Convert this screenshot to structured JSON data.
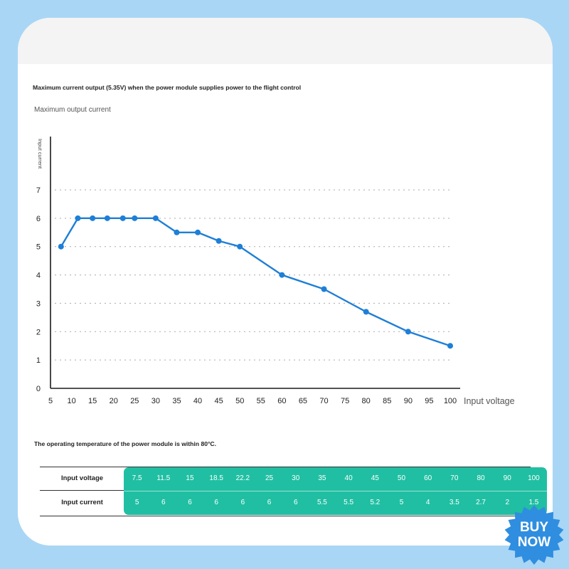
{
  "heading": "Maximum current output (5.35V) when the power module supplies power to the flight control",
  "chart_data": {
    "type": "line",
    "title": "Maximum output current",
    "ylabel": "Input current",
    "xlabel": "Input voltage",
    "x": [
      7.5,
      11.5,
      15,
      18.5,
      22.2,
      25,
      30,
      35,
      40,
      45,
      50,
      60,
      70,
      80,
      90,
      100
    ],
    "y": [
      5,
      6,
      6,
      6,
      6,
      6,
      6,
      5.5,
      5.5,
      5.2,
      5,
      4,
      3.5,
      2.7,
      2,
      1.5
    ],
    "x_ticks": [
      "5",
      "10",
      "15",
      "20",
      "25",
      "30",
      "35",
      "40",
      "45",
      "50",
      "55",
      "60",
      "65",
      "70",
      "75",
      "80",
      "85",
      "90",
      "95",
      "100"
    ],
    "y_ticks": [
      "0",
      "1",
      "2",
      "3",
      "4",
      "5",
      "6",
      "7"
    ],
    "xlim": [
      5,
      100
    ],
    "ylim": [
      0,
      7
    ],
    "grid": "horizontal dashed",
    "line_color": "#1e7fd6",
    "axis_color": "#1a1a1a"
  },
  "note": "The operating temperature of the power module is within 80°C.",
  "table": {
    "rows": [
      {
        "label": "Input voltage",
        "values": [
          "7.5",
          "11.5",
          "15",
          "18.5",
          "22.2",
          "25",
          "30",
          "35",
          "40",
          "45",
          "50",
          "60",
          "70",
          "80",
          "90",
          "100"
        ]
      },
      {
        "label": "Input current",
        "values": [
          "5",
          "6",
          "6",
          "6",
          "6",
          "6",
          "6",
          "5.5",
          "5.5",
          "5.2",
          "5",
          "4",
          "3.5",
          "2.7",
          "2",
          "1.5"
        ]
      }
    ],
    "color": "#20bfa3"
  },
  "badge": {
    "line1": "BUY",
    "line2": "NOW",
    "color": "#2f8ee0"
  }
}
